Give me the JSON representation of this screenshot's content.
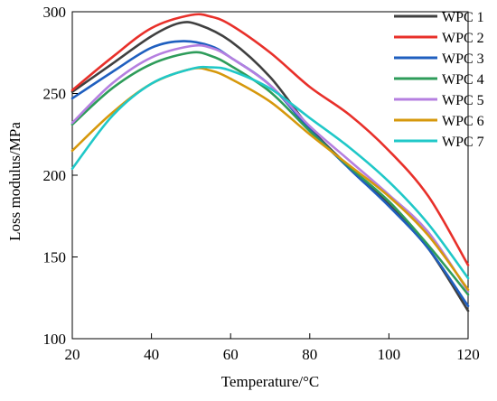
{
  "chart_data": {
    "type": "line",
    "title": "",
    "xlabel": "Temperature/°C",
    "ylabel": "Loss modulus/MPa",
    "xlim": [
      20,
      120
    ],
    "ylim": [
      100,
      300
    ],
    "xticks": [
      20,
      40,
      60,
      80,
      100,
      120
    ],
    "yticks": [
      100,
      150,
      200,
      250,
      300
    ],
    "grid": false,
    "legend_position": "top-right",
    "series": [
      {
        "name": "WPC 1",
        "color": "#404040",
        "points": [
          [
            20,
            251
          ],
          [
            30,
            268
          ],
          [
            40,
            285
          ],
          [
            47,
            293
          ],
          [
            52,
            292
          ],
          [
            60,
            282
          ],
          [
            70,
            260
          ],
          [
            80,
            229
          ],
          [
            90,
            205
          ],
          [
            100,
            182
          ],
          [
            110,
            155
          ],
          [
            120,
            117
          ]
        ]
      },
      {
        "name": "WPC 2",
        "color": "#e8302a",
        "points": [
          [
            20,
            252
          ],
          [
            30,
            272
          ],
          [
            40,
            290
          ],
          [
            50,
            298
          ],
          [
            55,
            297
          ],
          [
            60,
            292
          ],
          [
            70,
            275
          ],
          [
            80,
            254
          ],
          [
            90,
            237
          ],
          [
            100,
            215
          ],
          [
            110,
            187
          ],
          [
            120,
            145
          ]
        ]
      },
      {
        "name": "WPC 3",
        "color": "#1f5fbf",
        "points": [
          [
            20,
            247
          ],
          [
            30,
            263
          ],
          [
            40,
            278
          ],
          [
            48,
            282
          ],
          [
            55,
            279
          ],
          [
            60,
            272
          ],
          [
            70,
            255
          ],
          [
            80,
            228
          ],
          [
            90,
            204
          ],
          [
            100,
            181
          ],
          [
            110,
            155
          ],
          [
            120,
            120
          ]
        ]
      },
      {
        "name": "WPC 4",
        "color": "#2e9c5a",
        "points": [
          [
            20,
            231
          ],
          [
            30,
            253
          ],
          [
            40,
            268
          ],
          [
            50,
            275
          ],
          [
            55,
            273
          ],
          [
            60,
            267
          ],
          [
            70,
            251
          ],
          [
            80,
            227
          ],
          [
            90,
            205
          ],
          [
            100,
            184
          ],
          [
            110,
            157
          ],
          [
            120,
            127
          ]
        ]
      },
      {
        "name": "WPC 5",
        "color": "#b57fe0",
        "points": [
          [
            20,
            232
          ],
          [
            30,
            256
          ],
          [
            40,
            272
          ],
          [
            50,
            279
          ],
          [
            55,
            278
          ],
          [
            60,
            272
          ],
          [
            70,
            255
          ],
          [
            80,
            230
          ],
          [
            90,
            209
          ],
          [
            100,
            188
          ],
          [
            110,
            165
          ],
          [
            120,
            129
          ]
        ]
      },
      {
        "name": "WPC 6",
        "color": "#d6980c",
        "points": [
          [
            20,
            215
          ],
          [
            30,
            238
          ],
          [
            40,
            256
          ],
          [
            50,
            265
          ],
          [
            55,
            264
          ],
          [
            60,
            259
          ],
          [
            70,
            245
          ],
          [
            80,
            225
          ],
          [
            90,
            206
          ],
          [
            100,
            187
          ],
          [
            110,
            163
          ],
          [
            120,
            130
          ]
        ]
      },
      {
        "name": "WPC 7",
        "color": "#20c8c8",
        "points": [
          [
            20,
            204
          ],
          [
            30,
            236
          ],
          [
            40,
            256
          ],
          [
            50,
            265
          ],
          [
            55,
            266
          ],
          [
            60,
            264
          ],
          [
            70,
            253
          ],
          [
            80,
            235
          ],
          [
            90,
            217
          ],
          [
            100,
            196
          ],
          [
            110,
            170
          ],
          [
            120,
            137
          ]
        ]
      }
    ]
  }
}
